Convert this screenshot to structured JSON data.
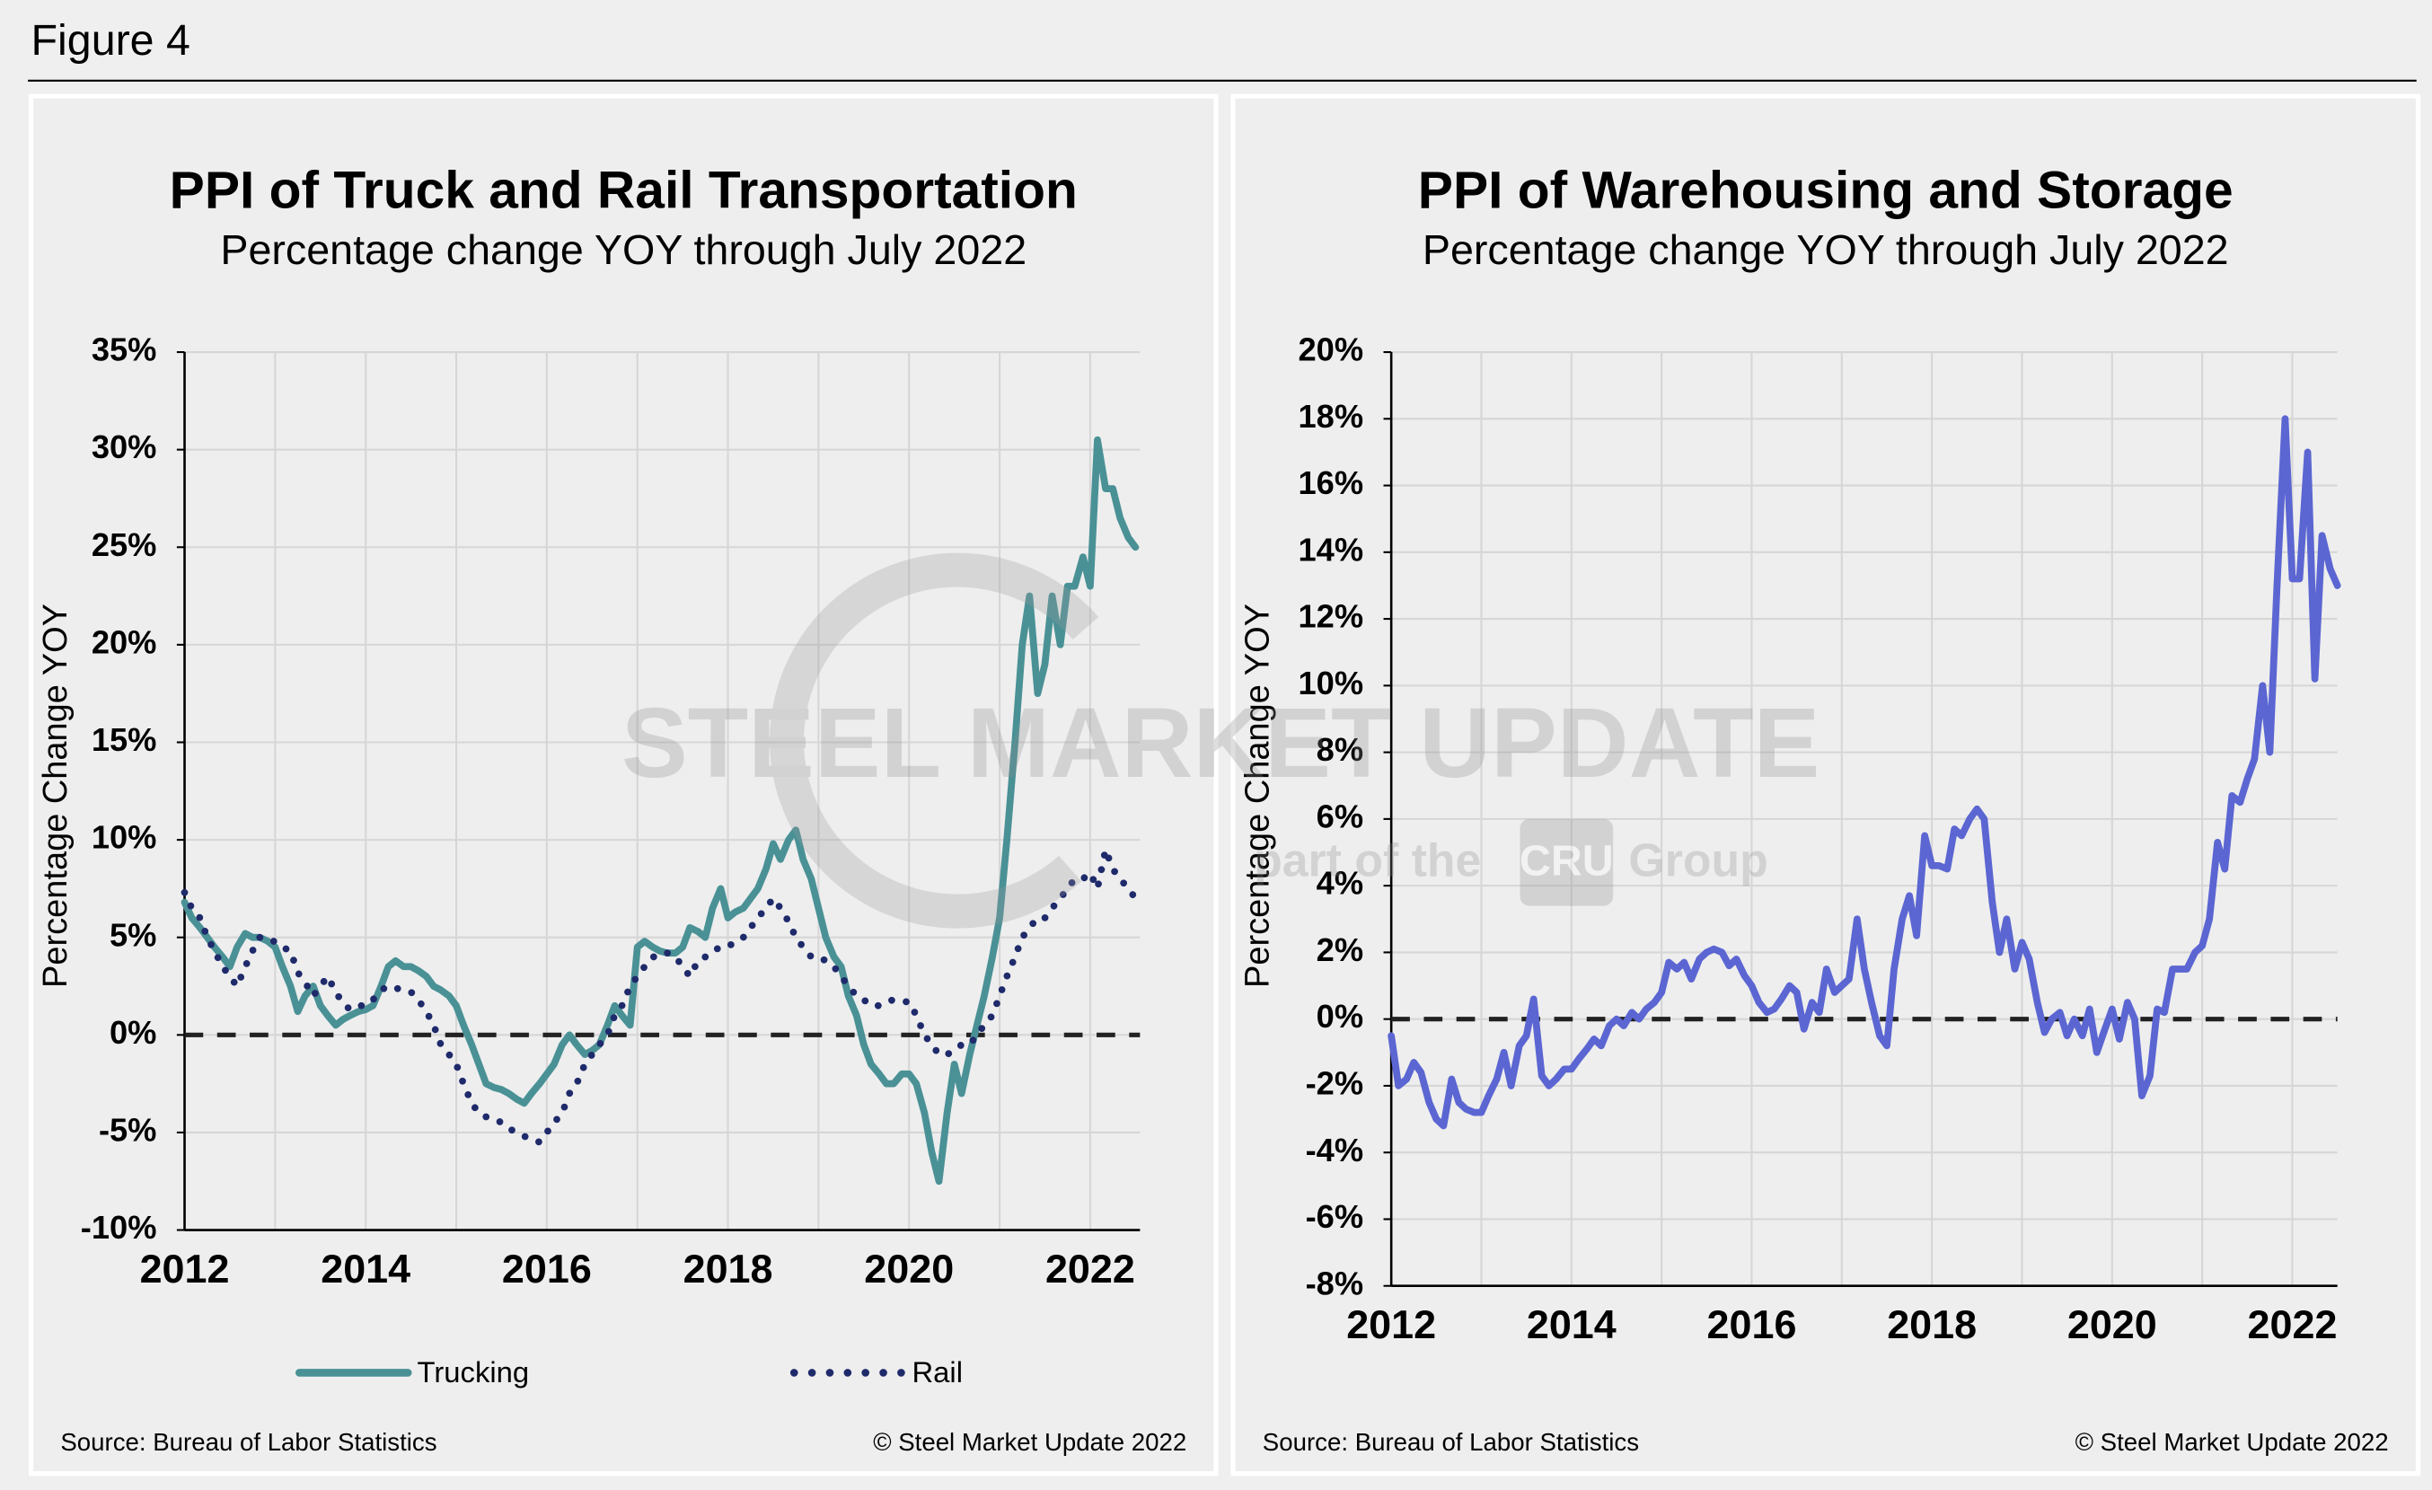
{
  "figure_label": "Figure 4",
  "watermark": {
    "line1": "STEEL MARKET UPDATE",
    "line2": "part of the",
    "box": "CRU",
    "line3": "Group"
  },
  "chart_data": [
    {
      "type": "line",
      "title": "PPI of Truck and Rail Transportation",
      "subtitle": "Percentage change YOY through July 2022",
      "y_label": "Percentage Change YOY",
      "source": "Source: Bureau of Labor Statistics",
      "copyright": "© Steel Market Update 2022",
      "x": [
        2012,
        2012.08,
        2012.17,
        2012.25,
        2012.33,
        2012.42,
        2012.5,
        2012.58,
        2012.67,
        2012.75,
        2012.83,
        2012.92,
        2013,
        2013.08,
        2013.17,
        2013.25,
        2013.33,
        2013.42,
        2013.5,
        2013.58,
        2013.67,
        2013.75,
        2013.83,
        2013.92,
        2014,
        2014.08,
        2014.17,
        2014.25,
        2014.33,
        2014.42,
        2014.5,
        2014.58,
        2014.67,
        2014.75,
        2014.83,
        2014.92,
        2015,
        2015.08,
        2015.17,
        2015.25,
        2015.33,
        2015.42,
        2015.5,
        2015.58,
        2015.67,
        2015.75,
        2015.83,
        2015.92,
        2016,
        2016.08,
        2016.17,
        2016.25,
        2016.33,
        2016.42,
        2016.5,
        2016.58,
        2016.67,
        2016.75,
        2016.83,
        2016.92,
        2017,
        2017.08,
        2017.17,
        2017.25,
        2017.33,
        2017.42,
        2017.5,
        2017.58,
        2017.67,
        2017.75,
        2017.83,
        2017.92,
        2018,
        2018.08,
        2018.17,
        2018.25,
        2018.33,
        2018.42,
        2018.5,
        2018.58,
        2018.67,
        2018.75,
        2018.83,
        2018.92,
        2019,
        2019.08,
        2019.17,
        2019.25,
        2019.33,
        2019.42,
        2019.5,
        2019.58,
        2019.67,
        2019.75,
        2019.83,
        2019.92,
        2020,
        2020.08,
        2020.17,
        2020.25,
        2020.33,
        2020.42,
        2020.5,
        2020.58,
        2020.67,
        2020.75,
        2020.83,
        2020.92,
        2021,
        2021.08,
        2021.17,
        2021.25,
        2021.33,
        2021.42,
        2021.5,
        2021.58,
        2021.67,
        2021.75,
        2021.83,
        2021.92,
        2022,
        2022.08,
        2022.17,
        2022.25,
        2022.33,
        2022.42,
        2022.5
      ],
      "xlim": [
        2012,
        2022.55
      ],
      "xticks": [
        2012,
        2014,
        2016,
        2018,
        2020,
        2022
      ],
      "xminor": [
        2013,
        2015,
        2017,
        2019,
        2021
      ],
      "ylim": [
        -10,
        35
      ],
      "yticks": [
        {
          "value": -10,
          "label": "-10%"
        },
        {
          "value": -5,
          "label": "-5%"
        },
        {
          "value": 0,
          "label": "0%"
        },
        {
          "value": 5,
          "label": "5%"
        },
        {
          "value": 10,
          "label": "10%"
        },
        {
          "value": 15,
          "label": "15%"
        },
        {
          "value": 20,
          "label": "20%"
        },
        {
          "value": 25,
          "label": "25%"
        },
        {
          "value": 30,
          "label": "30%"
        },
        {
          "value": 35,
          "label": "35%"
        }
      ],
      "grid": true,
      "zero_line": true,
      "legend": "bottom",
      "series": [
        {
          "name": "Trucking",
          "color": "#4a9196",
          "style": "solid",
          "values": [
            6.8,
            6.0,
            5.5,
            5.0,
            4.5,
            4.0,
            3.5,
            4.5,
            5.2,
            5.0,
            5.0,
            4.8,
            4.5,
            3.5,
            2.5,
            1.2,
            2.0,
            2.5,
            1.5,
            1.0,
            0.5,
            0.8,
            1.0,
            1.2,
            1.3,
            1.5,
            2.5,
            3.5,
            3.8,
            3.5,
            3.5,
            3.3,
            3.0,
            2.5,
            2.3,
            2.0,
            1.5,
            0.5,
            -0.5,
            -1.5,
            -2.5,
            -2.7,
            -2.8,
            -3.0,
            -3.3,
            -3.5,
            -3.0,
            -2.5,
            -2.0,
            -1.5,
            -0.5,
            0,
            -0.5,
            -1.0,
            -0.8,
            -0.5,
            0.5,
            1.5,
            1.0,
            0.5,
            4.5,
            4.8,
            4.5,
            4.3,
            4.2,
            4.2,
            4.5,
            5.5,
            5.3,
            5.0,
            6.5,
            7.5,
            6.0,
            6.3,
            6.5,
            7.0,
            7.5,
            8.5,
            9.8,
            9.0,
            10.0,
            10.5,
            9.0,
            8.0,
            6.5,
            5.0,
            4.0,
            3.5,
            2.0,
            1.0,
            -0.5,
            -1.5,
            -2.0,
            -2.5,
            -2.5,
            -2.0,
            -2.0,
            -2.5,
            -4.0,
            -6.0,
            -7.5,
            -4.0,
            -1.5,
            -3.0,
            -1.0,
            0.5,
            2.0,
            4.0,
            6.0,
            10.0,
            15.0,
            20.0,
            22.5,
            17.5,
            19.0,
            22.5,
            20.0,
            23.0,
            23.0,
            24.5,
            23.0,
            30.5,
            28.0,
            28.0,
            26.5,
            25.5,
            25.0
          ]
        },
        {
          "name": "Rail",
          "color": "#1f2a6b",
          "style": "dotted",
          "values": [
            7.3,
            6.5,
            6.0,
            5.0,
            4.3,
            3.5,
            3.0,
            2.5,
            3.5,
            4.3,
            5.0,
            4.8,
            4.8,
            4.5,
            4.3,
            3.2,
            2.7,
            2.0,
            2.5,
            3.0,
            2.2,
            1.6,
            1.3,
            1.5,
            1.5,
            1.8,
            2.3,
            2.5,
            2.4,
            2.3,
            2.2,
            1.8,
            1.2,
            0.5,
            -0.5,
            -1.0,
            -1.5,
            -2.5,
            -3.5,
            -4.0,
            -4.2,
            -4.3,
            -4.5,
            -4.8,
            -5.0,
            -5.2,
            -5.3,
            -5.5,
            -5.0,
            -4.5,
            -4.0,
            -3.0,
            -2.5,
            -1.5,
            -1.0,
            -0.5,
            0.0,
            1.0,
            1.5,
            2.5,
            3.0,
            3.5,
            4.0,
            4.0,
            4.2,
            4.0,
            3.5,
            3.0,
            3.8,
            4.0,
            4.3,
            4.5,
            4.5,
            4.8,
            5.0,
            5.5,
            6.0,
            6.5,
            7.0,
            6.5,
            5.8,
            5.0,
            4.5,
            4.0,
            4.0,
            3.8,
            3.5,
            3.0,
            2.5,
            2.0,
            1.8,
            1.5,
            1.5,
            1.7,
            1.8,
            1.7,
            1.7,
            1.0,
            0.0,
            -0.5,
            -1.0,
            -1.0,
            -0.8,
            -0.5,
            -0.5,
            0.0,
            0.5,
            1.0,
            2.0,
            3.0,
            4.0,
            5.0,
            5.5,
            6.0,
            6.0,
            6.5,
            7.0,
            7.5,
            8.0,
            8.0,
            8.3,
            7.5,
            9.5,
            8.5,
            8.0,
            7.5,
            7.0
          ]
        }
      ]
    },
    {
      "type": "line",
      "title": "PPI of Warehousing and Storage",
      "subtitle": "Percentage change YOY through July 2022",
      "y_label": "Percentage Change YOY",
      "source": "Source: Bureau of Labor Statistics",
      "copyright": "© Steel Market Update 2022",
      "x": [
        2012,
        2012.08,
        2012.17,
        2012.25,
        2012.33,
        2012.42,
        2012.5,
        2012.58,
        2012.67,
        2012.75,
        2012.83,
        2012.92,
        2013,
        2013.08,
        2013.17,
        2013.25,
        2013.33,
        2013.42,
        2013.5,
        2013.58,
        2013.67,
        2013.75,
        2013.83,
        2013.92,
        2014,
        2014.08,
        2014.17,
        2014.25,
        2014.33,
        2014.42,
        2014.5,
        2014.58,
        2014.67,
        2014.75,
        2014.83,
        2014.92,
        2015,
        2015.08,
        2015.17,
        2015.25,
        2015.33,
        2015.42,
        2015.5,
        2015.58,
        2015.67,
        2015.75,
        2015.83,
        2015.92,
        2016,
        2016.08,
        2016.17,
        2016.25,
        2016.33,
        2016.42,
        2016.5,
        2016.58,
        2016.67,
        2016.75,
        2016.83,
        2016.92,
        2017,
        2017.08,
        2017.17,
        2017.25,
        2017.33,
        2017.42,
        2017.5,
        2017.58,
        2017.67,
        2017.75,
        2017.83,
        2017.92,
        2018,
        2018.08,
        2018.17,
        2018.25,
        2018.33,
        2018.42,
        2018.5,
        2018.58,
        2018.67,
        2018.75,
        2018.83,
        2018.92,
        2019,
        2019.08,
        2019.17,
        2019.25,
        2019.33,
        2019.42,
        2019.5,
        2019.58,
        2019.67,
        2019.75,
        2019.83,
        2019.92,
        2020,
        2020.08,
        2020.17,
        2020.25,
        2020.33,
        2020.42,
        2020.5,
        2020.58,
        2020.67,
        2020.75,
        2020.83,
        2020.92,
        2021,
        2021.08,
        2021.17,
        2021.25,
        2021.33,
        2021.42,
        2021.5,
        2021.58,
        2021.67,
        2021.75,
        2021.83,
        2021.92,
        2022,
        2022.08,
        2022.17,
        2022.25,
        2022.33,
        2022.42,
        2022.5
      ],
      "xlim": [
        2012,
        2022.5
      ],
      "xticks": [
        2012,
        2014,
        2016,
        2018,
        2020,
        2022
      ],
      "xminor": [
        2013,
        2015,
        2017,
        2019,
        2021
      ],
      "ylim": [
        -8,
        20
      ],
      "yticks": [
        {
          "value": -8,
          "label": "-8%"
        },
        {
          "value": -6,
          "label": "-6%"
        },
        {
          "value": -4,
          "label": "-4%"
        },
        {
          "value": -2,
          "label": "-2%"
        },
        {
          "value": 0,
          "label": "0%"
        },
        {
          "value": 2,
          "label": "2%"
        },
        {
          "value": 4,
          "label": "4%"
        },
        {
          "value": 6,
          "label": "6%"
        },
        {
          "value": 8,
          "label": "8%"
        },
        {
          "value": 10,
          "label": "10%"
        },
        {
          "value": 12,
          "label": "12%"
        },
        {
          "value": 14,
          "label": "14%"
        },
        {
          "value": 16,
          "label": "16%"
        },
        {
          "value": 18,
          "label": "18%"
        },
        {
          "value": 20,
          "label": "20%"
        }
      ],
      "grid": true,
      "zero_line": true,
      "series": [
        {
          "color": "#5b66d2",
          "style": "solid",
          "values": [
            -0.5,
            -2.0,
            -1.8,
            -1.3,
            -1.6,
            -2.5,
            -3.0,
            -3.2,
            -1.8,
            -2.5,
            -2.7,
            -2.8,
            -2.8,
            -2.3,
            -1.8,
            -1.0,
            -2.0,
            -0.8,
            -0.5,
            0.6,
            -1.7,
            -2.0,
            -1.8,
            -1.5,
            -1.5,
            -1.2,
            -0.9,
            -0.6,
            -0.8,
            -0.2,
            0.0,
            -0.2,
            0.2,
            0.0,
            0.3,
            0.5,
            0.8,
            1.7,
            1.5,
            1.7,
            1.2,
            1.8,
            2.0,
            2.1,
            2.0,
            1.6,
            1.8,
            1.3,
            1.0,
            0.5,
            0.2,
            0.3,
            0.6,
            1.0,
            0.8,
            -0.3,
            0.5,
            0.2,
            1.5,
            0.8,
            1.0,
            1.2,
            3.0,
            1.5,
            0.5,
            -0.5,
            -0.8,
            1.5,
            3.0,
            3.7,
            2.5,
            5.5,
            4.6,
            4.6,
            4.5,
            5.7,
            5.5,
            6.0,
            6.3,
            6.0,
            3.5,
            2.0,
            3.0,
            1.5,
            2.3,
            1.8,
            0.5,
            -0.4,
            0.0,
            0.2,
            -0.5,
            0.0,
            -0.5,
            0.3,
            -1.0,
            -0.3,
            0.3,
            -0.6,
            0.5,
            0.0,
            -2.3,
            -1.7,
            0.3,
            0.2,
            1.5,
            1.5,
            1.5,
            2.0,
            2.2,
            3.0,
            5.3,
            4.5,
            6.7,
            6.5,
            7.2,
            7.8,
            10.0,
            8.0,
            13.0,
            18.0,
            13.2,
            13.2,
            17.0,
            10.2,
            14.5,
            13.5,
            13.0
          ]
        }
      ]
    }
  ]
}
